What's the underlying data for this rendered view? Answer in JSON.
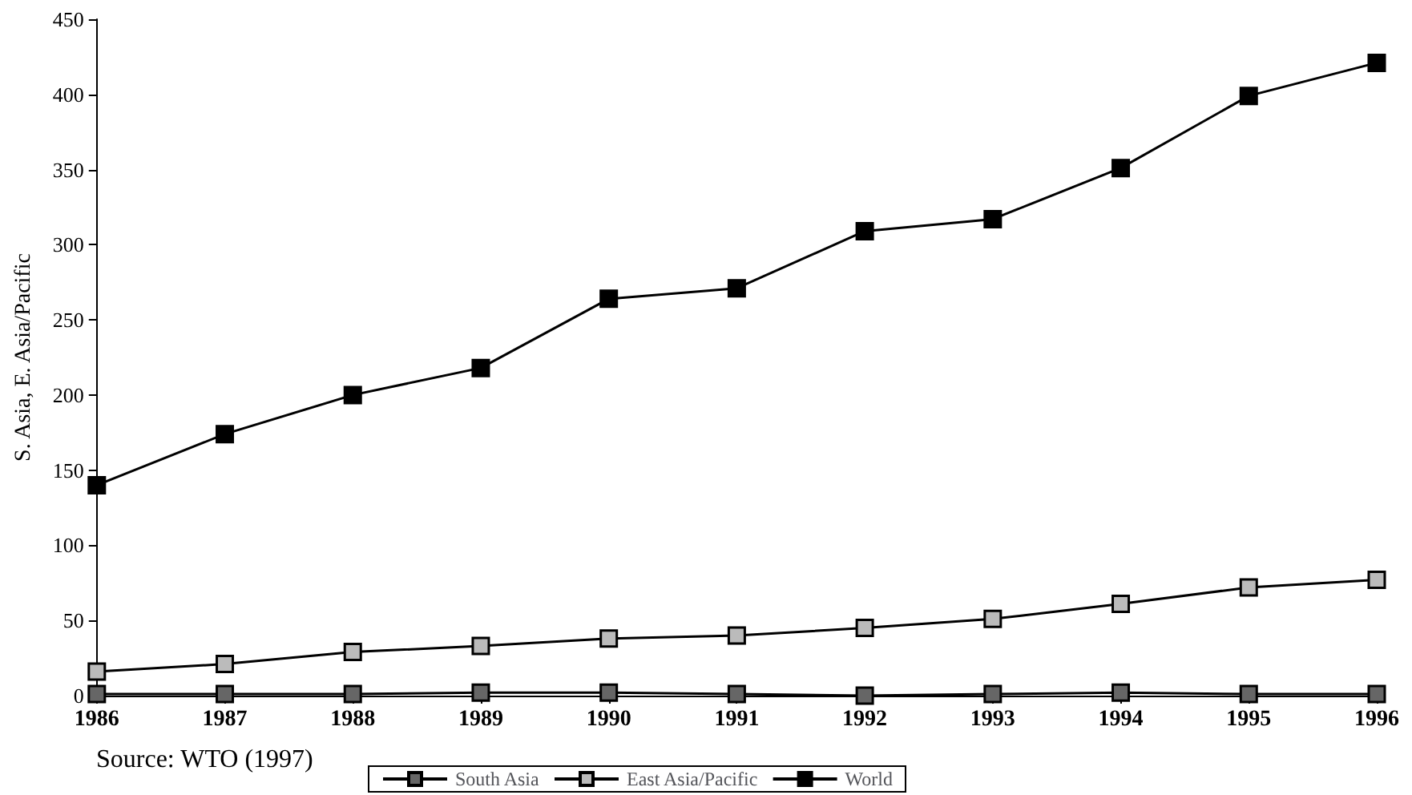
{
  "chart_data": {
    "type": "line",
    "ylabel": "S. Asia, E. Asia/Pacific",
    "categories": [
      "1986",
      "1987",
      "1988",
      "1989",
      "1990",
      "1991",
      "1992",
      "1993",
      "1994",
      "1995",
      "1996"
    ],
    "series": [
      {
        "name": "South Asia",
        "color": "#000000",
        "values": [
          1,
          1,
          1,
          2,
          2,
          1,
          0,
          1,
          2,
          1,
          1
        ]
      },
      {
        "name": "East Asia/Pacific",
        "color": "#000000",
        "values": [
          16,
          21,
          29,
          33,
          38,
          40,
          45,
          51,
          61,
          72,
          77
        ]
      },
      {
        "name": "World",
        "color": "#000000",
        "values": [
          140,
          174,
          200,
          218,
          264,
          271,
          309,
          317,
          351,
          399,
          421
        ]
      }
    ],
    "ylim": [
      0,
      450
    ],
    "yticks": [
      0,
      50,
      100,
      150,
      200,
      250,
      300,
      350,
      400,
      450
    ],
    "grid": false,
    "legend": "bottom",
    "marker": "square",
    "line_style": "solid",
    "annotations": [
      "Source: WTO (1997)"
    ]
  }
}
